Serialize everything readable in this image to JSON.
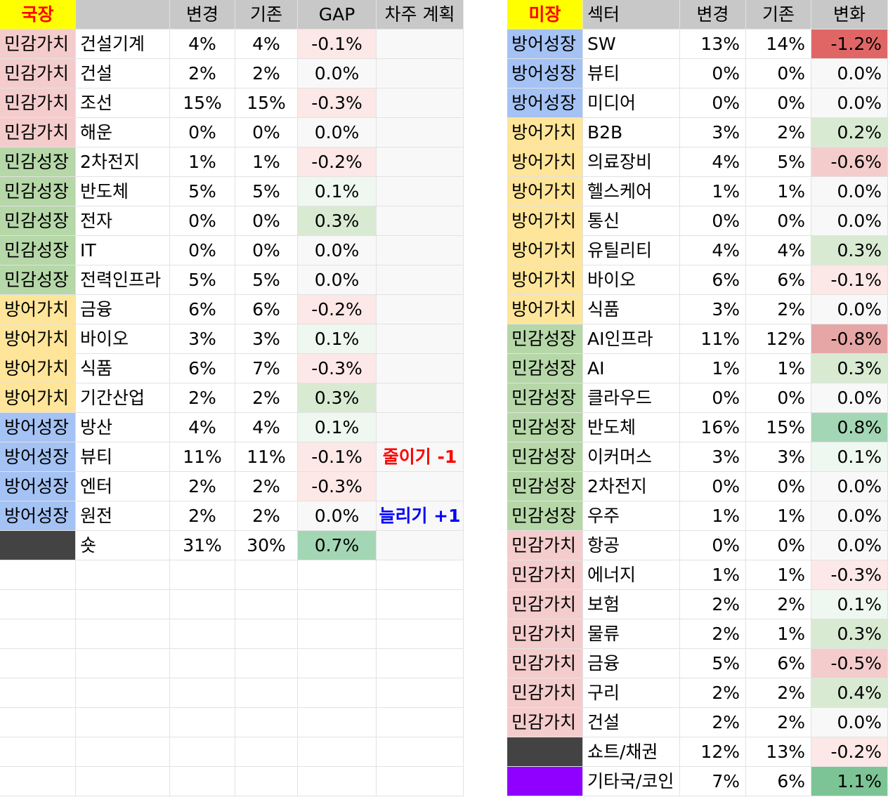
{
  "korea": {
    "market_label": "국장",
    "headers": {
      "sector": "",
      "change": "변경",
      "prev": "기존",
      "gap": "GAP",
      "plan": "차주 계획"
    },
    "rows": [
      {
        "group": "민감가치",
        "sector": "건설기계",
        "change": "4%",
        "prev": "4%",
        "gap": "-0.1%",
        "plan": ""
      },
      {
        "group": "민감가치",
        "sector": "건설",
        "change": "2%",
        "prev": "2%",
        "gap": "0.0%",
        "plan": ""
      },
      {
        "group": "민감가치",
        "sector": "조선",
        "change": "15%",
        "prev": "15%",
        "gap": "-0.3%",
        "plan": ""
      },
      {
        "group": "민감가치",
        "sector": "해운",
        "change": "0%",
        "prev": "0%",
        "gap": "0.0%",
        "plan": ""
      },
      {
        "group": "민감성장",
        "sector": "2차전지",
        "change": "1%",
        "prev": "1%",
        "gap": "-0.2%",
        "plan": ""
      },
      {
        "group": "민감성장",
        "sector": "반도체",
        "change": "5%",
        "prev": "5%",
        "gap": "0.1%",
        "plan": ""
      },
      {
        "group": "민감성장",
        "sector": "전자",
        "change": "0%",
        "prev": "0%",
        "gap": "0.3%",
        "plan": ""
      },
      {
        "group": "민감성장",
        "sector": "IT",
        "change": "0%",
        "prev": "0%",
        "gap": "0.0%",
        "plan": ""
      },
      {
        "group": "민감성장",
        "sector": "전력인프라",
        "change": "5%",
        "prev": "5%",
        "gap": "0.0%",
        "plan": ""
      },
      {
        "group": "방어가치",
        "sector": "금융",
        "change": "6%",
        "prev": "6%",
        "gap": "-0.2%",
        "plan": ""
      },
      {
        "group": "방어가치",
        "sector": "바이오",
        "change": "3%",
        "prev": "3%",
        "gap": "0.1%",
        "plan": ""
      },
      {
        "group": "방어가치",
        "sector": "식품",
        "change": "6%",
        "prev": "7%",
        "gap": "-0.3%",
        "plan": ""
      },
      {
        "group": "방어가치",
        "sector": "기간산업",
        "change": "2%",
        "prev": "2%",
        "gap": "0.3%",
        "plan": ""
      },
      {
        "group": "방어성장",
        "sector": "방산",
        "change": "4%",
        "prev": "4%",
        "gap": "0.1%",
        "plan": ""
      },
      {
        "group": "방어성장",
        "sector": "뷰티",
        "change": "11%",
        "prev": "11%",
        "gap": "-0.1%",
        "plan": "줄이기 -1"
      },
      {
        "group": "방어성장",
        "sector": "엔터",
        "change": "2%",
        "prev": "2%",
        "gap": "-0.3%",
        "plan": ""
      },
      {
        "group": "방어성장",
        "sector": "원전",
        "change": "2%",
        "prev": "2%",
        "gap": "0.0%",
        "plan": "늘리기 +1"
      },
      {
        "group": "",
        "sector": "숏",
        "change": "31%",
        "prev": "30%",
        "gap": "0.7%",
        "plan": ""
      }
    ]
  },
  "us": {
    "market_label": "미장",
    "headers": {
      "sector": "섹터",
      "change": "변경",
      "prev": "기존",
      "delta": "변화"
    },
    "rows": [
      {
        "group": "방어성장",
        "sector": "SW",
        "change": "13%",
        "prev": "14%",
        "delta": "-1.2%"
      },
      {
        "group": "방어성장",
        "sector": "뷰티",
        "change": "0%",
        "prev": "0%",
        "delta": "0.0%"
      },
      {
        "group": "방어성장",
        "sector": "미디어",
        "change": "0%",
        "prev": "0%",
        "delta": "0.0%"
      },
      {
        "group": "방어가치",
        "sector": "B2B",
        "change": "3%",
        "prev": "2%",
        "delta": "0.2%"
      },
      {
        "group": "방어가치",
        "sector": "의료장비",
        "change": "4%",
        "prev": "5%",
        "delta": "-0.6%"
      },
      {
        "group": "방어가치",
        "sector": "헬스케어",
        "change": "1%",
        "prev": "1%",
        "delta": "0.0%"
      },
      {
        "group": "방어가치",
        "sector": "통신",
        "change": "0%",
        "prev": "0%",
        "delta": "0.0%"
      },
      {
        "group": "방어가치",
        "sector": "유틸리티",
        "change": "4%",
        "prev": "4%",
        "delta": "0.3%"
      },
      {
        "group": "방어가치",
        "sector": "바이오",
        "change": "6%",
        "prev": "6%",
        "delta": "-0.1%"
      },
      {
        "group": "방어가치",
        "sector": "식품",
        "change": "3%",
        "prev": "2%",
        "delta": "0.0%"
      },
      {
        "group": "민감성장",
        "sector": "AI인프라",
        "change": "11%",
        "prev": "12%",
        "delta": "-0.8%"
      },
      {
        "group": "민감성장",
        "sector": "AI",
        "change": "1%",
        "prev": "1%",
        "delta": "0.3%"
      },
      {
        "group": "민감성장",
        "sector": "클라우드",
        "change": "0%",
        "prev": "0%",
        "delta": "0.0%"
      },
      {
        "group": "민감성장",
        "sector": "반도체",
        "change": "16%",
        "prev": "15%",
        "delta": "0.8%"
      },
      {
        "group": "민감성장",
        "sector": "이커머스",
        "change": "3%",
        "prev": "3%",
        "delta": "0.1%"
      },
      {
        "group": "민감성장",
        "sector": "2차전지",
        "change": "0%",
        "prev": "0%",
        "delta": "0.0%"
      },
      {
        "group": "민감성장",
        "sector": "우주",
        "change": "1%",
        "prev": "1%",
        "delta": "0.0%"
      },
      {
        "group": "민감가치",
        "sector": "항공",
        "change": "0%",
        "prev": "0%",
        "delta": "0.0%"
      },
      {
        "group": "민감가치",
        "sector": "에너지",
        "change": "1%",
        "prev": "1%",
        "delta": "-0.3%"
      },
      {
        "group": "민감가치",
        "sector": "보험",
        "change": "2%",
        "prev": "2%",
        "delta": "0.1%"
      },
      {
        "group": "민감가치",
        "sector": "물류",
        "change": "2%",
        "prev": "1%",
        "delta": "0.3%"
      },
      {
        "group": "민감가치",
        "sector": "금융",
        "change": "5%",
        "prev": "6%",
        "delta": "-0.5%"
      },
      {
        "group": "민감가치",
        "sector": "구리",
        "change": "2%",
        "prev": "2%",
        "delta": "0.4%"
      },
      {
        "group": "민감가치",
        "sector": "건설",
        "change": "2%",
        "prev": "2%",
        "delta": "0.0%"
      },
      {
        "group": "",
        "sector": "쇼트/채권",
        "change": "12%",
        "prev": "13%",
        "delta": "-0.2%"
      },
      {
        "group": "",
        "sector": "기타국/코인",
        "change": "7%",
        "prev": "6%",
        "delta": "1.1%"
      }
    ]
  },
  "colors": {
    "market_label_bg": "#ffff00",
    "market_label_text": "#ff0000",
    "header_bg": "#c8c8c8",
    "group_bg": {
      "민감가치": "#f4cccc",
      "민감성장": "#b6d7a8",
      "방어가치": "#ffe599",
      "방어성장": "#a4c2f4"
    },
    "dark_swatch": "#434343",
    "purple_swatch": "#9000ff",
    "plan_reduce": "#ff0000",
    "plan_increase": "#0000ff",
    "shade_red_strong": "#e06666",
    "shade_red_mid": "#e6a6a6",
    "shade_red_light": "#f4cccc",
    "shade_red_faint": "#fce8e6",
    "shade_neutral": "#f8f8f8",
    "shade_green_faint": "#eef7f0",
    "shade_green_light": "#d9ead3",
    "shade_green_mid": "#a3d6b4",
    "shade_green_strong": "#7cc495"
  }
}
